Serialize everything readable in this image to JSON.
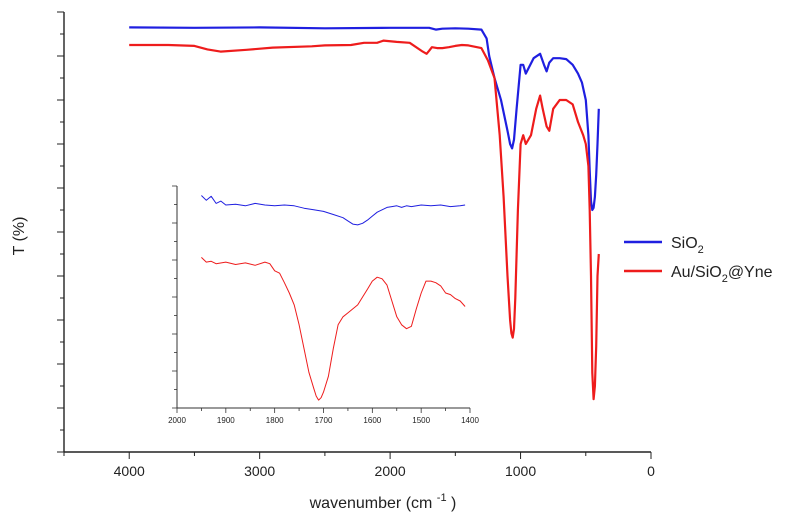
{
  "chart_data": [
    {
      "type": "line",
      "title": "",
      "xlabel": "wavenumber",
      "xlabel_unit_base": "(cm",
      "xlabel_unit_exp": "-1",
      "xlabel_unit_close": ")",
      "ylabel": "T (%)",
      "xlim": [
        4500,
        0
      ],
      "ylim": [
        0,
        100
      ],
      "x_ticks": [
        4000,
        3000,
        2000,
        1000,
        0
      ],
      "y_tick_labels_shown": false,
      "grid": false,
      "legend_position": "right",
      "series": [
        {
          "name": "SiO",
          "name_sub": "2",
          "color": "#1f1fe0",
          "x": [
            4000,
            3500,
            3000,
            2500,
            2000,
            1700,
            1650,
            1600,
            1500,
            1400,
            1300,
            1260,
            1240,
            1200,
            1150,
            1100,
            1080,
            1065,
            1050,
            1030,
            1000,
            980,
            960,
            900,
            850,
            820,
            800,
            780,
            750,
            700,
            650,
            600,
            560,
            530,
            500,
            480,
            470,
            460,
            450,
            440,
            430,
            420,
            410,
            400
          ],
          "y": [
            96.5,
            96.4,
            96.5,
            96.3,
            96.4,
            96.4,
            96.0,
            96.2,
            96.3,
            96.2,
            96.0,
            94,
            90,
            85,
            80,
            73,
            70,
            69,
            71,
            78,
            88,
            88,
            86,
            89.5,
            90.5,
            88,
            86.5,
            88.5,
            89.5,
            89.5,
            89.3,
            88,
            86,
            84,
            80,
            72,
            64,
            57,
            55,
            55.5,
            58,
            63,
            70,
            78
          ]
        },
        {
          "name": "Au/SiO",
          "name_sub": "2",
          "name_suffix": "@Yne",
          "color": "#ee1c1c",
          "x": [
            4000,
            3700,
            3500,
            3400,
            3300,
            3100,
            2900,
            2600,
            2500,
            2300,
            2200,
            2100,
            2050,
            1950,
            1850,
            1750,
            1720,
            1700,
            1680,
            1640,
            1600,
            1550,
            1500,
            1450,
            1400,
            1300,
            1250,
            1200,
            1160,
            1130,
            1100,
            1080,
            1070,
            1060,
            1050,
            1040,
            1020,
            1000,
            980,
            960,
            920,
            880,
            850,
            830,
            800,
            780,
            750,
            700,
            650,
            600,
            560,
            520,
            500,
            480,
            470,
            460,
            450,
            440,
            430,
            420,
            410,
            400
          ],
          "y": [
            92.5,
            92.5,
            92.3,
            91.5,
            91.0,
            91.4,
            91.9,
            92.2,
            92.4,
            92.5,
            93,
            93,
            93.5,
            93.2,
            93.0,
            91.0,
            90.5,
            91.2,
            92.0,
            91.8,
            91.8,
            92.0,
            92.3,
            92.5,
            92.4,
            91.8,
            89,
            85,
            72,
            58,
            40,
            30,
            27,
            26,
            28,
            35,
            55,
            70,
            72,
            70,
            72,
            78,
            81,
            78,
            74,
            73,
            78,
            80,
            80,
            79,
            75,
            72,
            70,
            65,
            55,
            40,
            18,
            12,
            15,
            24,
            40,
            45
          ]
        }
      ]
    },
    {
      "type": "line",
      "title": "",
      "xlabel": "",
      "ylabel": "",
      "xlim": [
        2000,
        1400
      ],
      "x_ticks": [
        2000,
        1900,
        1800,
        1700,
        1600,
        1500,
        1400
      ],
      "y_tick_labels_shown": false,
      "grid": false,
      "series": [
        {
          "color": "#1f1fe0",
          "x": [
            1950,
            1940,
            1930,
            1920,
            1910,
            1900,
            1880,
            1860,
            1840,
            1820,
            1800,
            1780,
            1760,
            1740,
            1720,
            1700,
            1680,
            1660,
            1650,
            1640,
            1630,
            1620,
            1610,
            1600,
            1590,
            1580,
            1570,
            1560,
            1550,
            1540,
            1530,
            1520,
            1500,
            1480,
            1460,
            1440,
            1420,
            1410
          ],
          "y": [
            96.8,
            96.2,
            96.7,
            95.8,
            96.1,
            95.6,
            95.7,
            95.5,
            95.8,
            95.6,
            95.5,
            95.6,
            95.5,
            95.2,
            95.0,
            94.8,
            94.4,
            94.0,
            93.6,
            93.2,
            93.1,
            93.3,
            93.7,
            94.2,
            94.7,
            95.0,
            95.3,
            95.4,
            95.5,
            95.3,
            95.5,
            95.4,
            95.6,
            95.5,
            95.6,
            95.4,
            95.5,
            95.6
          ]
        },
        {
          "color": "#ee1c1c",
          "x": [
            1950,
            1940,
            1930,
            1920,
            1900,
            1880,
            1860,
            1840,
            1820,
            1810,
            1800,
            1790,
            1780,
            1770,
            1760,
            1750,
            1740,
            1730,
            1720,
            1715,
            1710,
            1705,
            1700,
            1690,
            1680,
            1670,
            1660,
            1650,
            1640,
            1630,
            1620,
            1610,
            1600,
            1590,
            1580,
            1570,
            1560,
            1550,
            1540,
            1530,
            1520,
            1510,
            1500,
            1490,
            1480,
            1470,
            1460,
            1450,
            1440,
            1430,
            1420,
            1410
          ],
          "y": [
            89.0,
            88.4,
            88.5,
            88.2,
            88.4,
            88.1,
            88.3,
            88.0,
            88.4,
            88.2,
            87.3,
            87.0,
            85.8,
            84.5,
            83.0,
            80.5,
            77.5,
            74.5,
            72.5,
            71.5,
            71.0,
            71.3,
            72.0,
            74.0,
            77.5,
            80.5,
            81.5,
            82.0,
            82.5,
            83.0,
            84.0,
            85.0,
            86.0,
            86.5,
            86.3,
            85.5,
            83.5,
            81.5,
            80.5,
            80.0,
            80.3,
            82.5,
            84.5,
            86.0,
            86.0,
            85.8,
            85.4,
            84.5,
            84.3,
            83.8,
            83.5,
            82.8
          ]
        }
      ]
    }
  ]
}
